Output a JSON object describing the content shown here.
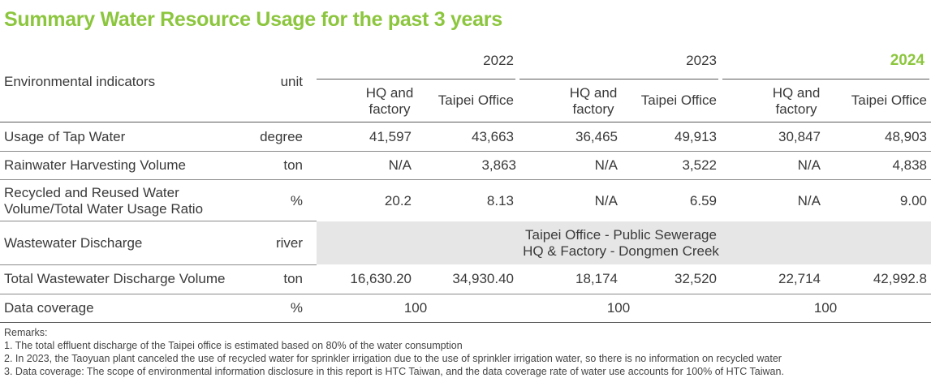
{
  "title": "Summary Water Resource Usage for the past 3 years",
  "header": {
    "indicator_label": "Environmental indicators",
    "unit_label": "unit",
    "years": [
      "2022",
      "2023",
      "2024"
    ],
    "sub_hq": "HQ and factory",
    "sub_hq_line1": "HQ and",
    "sub_hq_line2": "factory",
    "sub_taipei": "Taipei Office"
  },
  "rows": [
    {
      "indicator": "Usage of Tap Water",
      "unit": "degree",
      "values": [
        "41,597",
        "43,663",
        "36,465",
        "49,913",
        "30,847",
        "48,903"
      ]
    },
    {
      "indicator": "Rainwater Harvesting Volume",
      "unit": "ton",
      "values": [
        "N/A",
        "3,863",
        "N/A",
        "3,522",
        "N/A",
        "4,838"
      ]
    },
    {
      "indicator_line1": "Recycled and Reused Water",
      "indicator_line2": "Volume/Total Water Usage Ratio",
      "unit": "%",
      "values": [
        "20.2",
        "8.13",
        "N/A",
        "6.59",
        "N/A",
        "9.00"
      ]
    },
    {
      "indicator": "Wastewater Discharge",
      "unit": "river",
      "merged_line1": "Taipei Office - Public Sewerage",
      "merged_line2": "HQ & Factory - Dongmen Creek"
    },
    {
      "indicator": "Total Wastewater Discharge Volume",
      "unit": "ton",
      "values": [
        "16,630.20",
        "34,930.40",
        "18,174",
        "32,520",
        "22,714",
        "42,992.8"
      ]
    },
    {
      "indicator": "Data coverage",
      "unit": "%",
      "values": [
        "100",
        "100",
        "100"
      ]
    }
  ],
  "remarks": [
    "Remarks:",
    "1. The total effluent discharge of the Taipei office is estimated based on 80% of the water consumption",
    "2. In 2023, the Taoyuan plant canceled the use of recycled water for sprinkler irrigation due to the use of sprinkler irrigation water, so there is no information on recycled water",
    "3. Data coverage: The scope of environmental information disclosure in this report is HTC Taiwan, and the data coverage rate of water use accounts for 100% of HTC Taiwan."
  ],
  "colors": {
    "accent": "#8cc63e",
    "text": "#3a3a3a",
    "merged_bg": "#e6e6e6"
  }
}
